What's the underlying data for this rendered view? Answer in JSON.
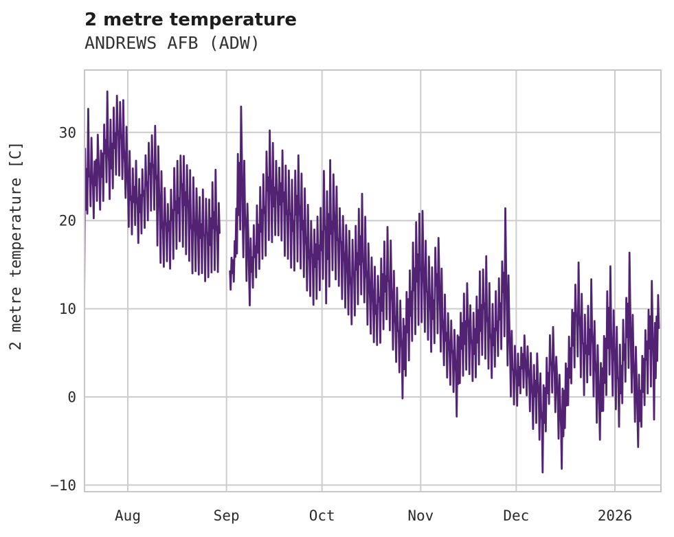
{
  "header": {
    "title": "2 metre temperature",
    "subtitle": "ANDREWS AFB (ADW)"
  },
  "chart_data": {
    "type": "line",
    "title": "2 metre temperature",
    "subtitle": "ANDREWS AFB (ADW)",
    "xlabel": "",
    "ylabel": "2 metre temperature [C]",
    "legend": false,
    "grid": true,
    "background": "#ffffff",
    "colors": {
      "line": "#522372",
      "grid": "#cccccc",
      "border": "#c6c6c6",
      "title_text": "#1c1c1c",
      "subtitle_text": "#333333",
      "tick_text": "#2a2a2a"
    },
    "x_ticks": [
      {
        "label": "Aug",
        "day_index": 14
      },
      {
        "label": "Sep",
        "day_index": 45
      },
      {
        "label": "Oct",
        "day_index": 75
      },
      {
        "label": "Nov",
        "day_index": 106
      },
      {
        "label": "Dec",
        "day_index": 136
      },
      {
        "label": "2026",
        "day_index": 167
      }
    ],
    "y_ticks": [
      {
        "label": "30",
        "value": 30
      },
      {
        "label": "20",
        "value": 20
      },
      {
        "label": "10",
        "value": 10
      },
      {
        "label": "0",
        "value": 0
      },
      {
        "label": "−10",
        "value": -10
      }
    ],
    "ylim": [
      -10.7,
      37.1
    ],
    "x_start_date": "2025-07-18",
    "x_end_date": "2026-01-15",
    "note": "Hourly-looking noisy series encoded as a per-day min/max envelope read from the pixels; null = visible data gap (late Aug).",
    "series": [
      {
        "name": "2 metre temperature",
        "color": "#522372",
        "daily_min": [
          9,
          20,
          21,
          20,
          22,
          21,
          22,
          24,
          22,
          23,
          25,
          25,
          24,
          22,
          19,
          18,
          19,
          17,
          18,
          19,
          20,
          21,
          21,
          17,
          15,
          14.5,
          15,
          14.5,
          15,
          16,
          17,
          17,
          16,
          15,
          14,
          14,
          13.5,
          14,
          13,
          13.5,
          14,
          14,
          14,
          null,
          null,
          null,
          12,
          13,
          16,
          18,
          15,
          13,
          10.2,
          12,
          13,
          14,
          15,
          16,
          17,
          17,
          18,
          18,
          17,
          16,
          15,
          14,
          14,
          15,
          14,
          13,
          12,
          11,
          10,
          11,
          12,
          13,
          10.3,
          12,
          14,
          13,
          12,
          11,
          10,
          9,
          8,
          9,
          10,
          11,
          10,
          8,
          7,
          6,
          5.5,
          6,
          7,
          8,
          7,
          5,
          3.5,
          2.5,
          -0.4,
          2,
          4,
          6,
          7,
          8,
          8,
          7,
          6,
          5,
          6,
          7,
          5,
          3,
          2,
          1,
          0,
          -2.3,
          1,
          2,
          3,
          2,
          1.5,
          2,
          3,
          4,
          4,
          3,
          2,
          3,
          4,
          5,
          6,
          3,
          0,
          -1,
          -1,
          0,
          1,
          0,
          -2,
          -4,
          -3,
          -5,
          -8.6,
          -4,
          -1,
          0,
          -2,
          -5,
          -8.3,
          -4,
          -1,
          1,
          3,
          4,
          2,
          0,
          1,
          2,
          0,
          -3,
          -5.5,
          -2,
          0,
          2,
          0,
          -2,
          -3.4,
          -1,
          1,
          3,
          0,
          -3,
          -6.2,
          -4,
          -1,
          0,
          1,
          -2.7,
          4
        ],
        "daily_max": [
          29,
          33,
          30,
          27,
          30,
          28,
          31,
          35,
          32,
          33,
          34.5,
          34,
          34,
          31,
          28,
          26,
          27,
          25,
          26,
          28,
          29,
          30,
          31,
          29,
          26,
          24,
          22,
          24,
          26,
          27.5,
          28,
          28,
          27,
          26,
          25,
          24,
          23,
          24,
          23,
          23,
          25,
          26,
          22,
          null,
          null,
          null,
          16,
          18,
          28,
          33.4,
          27,
          22,
          18,
          20,
          22,
          24,
          26,
          28,
          30.9,
          29,
          27,
          26,
          28.6,
          27,
          26,
          25,
          26,
          27.5,
          26,
          24,
          22,
          20,
          19,
          21,
          22,
          26,
          24,
          27.5,
          26,
          24,
          22,
          21,
          20,
          19,
          18,
          20,
          22,
          23.5,
          21,
          18,
          16,
          15,
          14,
          16,
          18,
          20,
          18,
          15,
          13,
          11,
          9,
          12,
          15,
          18,
          20,
          21.7,
          21.5,
          18,
          16,
          15,
          17,
          18.5,
          15,
          12,
          10,
          9,
          8,
          7,
          10,
          12,
          13.5,
          11,
          10,
          12,
          14.5,
          15,
          16.5,
          13,
          11,
          12,
          14,
          16,
          21.5,
          14,
          8,
          6,
          5,
          6,
          7,
          6,
          5,
          4,
          5,
          3,
          2,
          5,
          7,
          8,
          5,
          3,
          1,
          4,
          7,
          10,
          13,
          15.8,
          12,
          10,
          11,
          13.5,
          9,
          6,
          4,
          7,
          12,
          14.9,
          10,
          8,
          6,
          9,
          12,
          16.5,
          10,
          6,
          3,
          5,
          8,
          10,
          13.5,
          9,
          11.8
        ]
      }
    ]
  }
}
